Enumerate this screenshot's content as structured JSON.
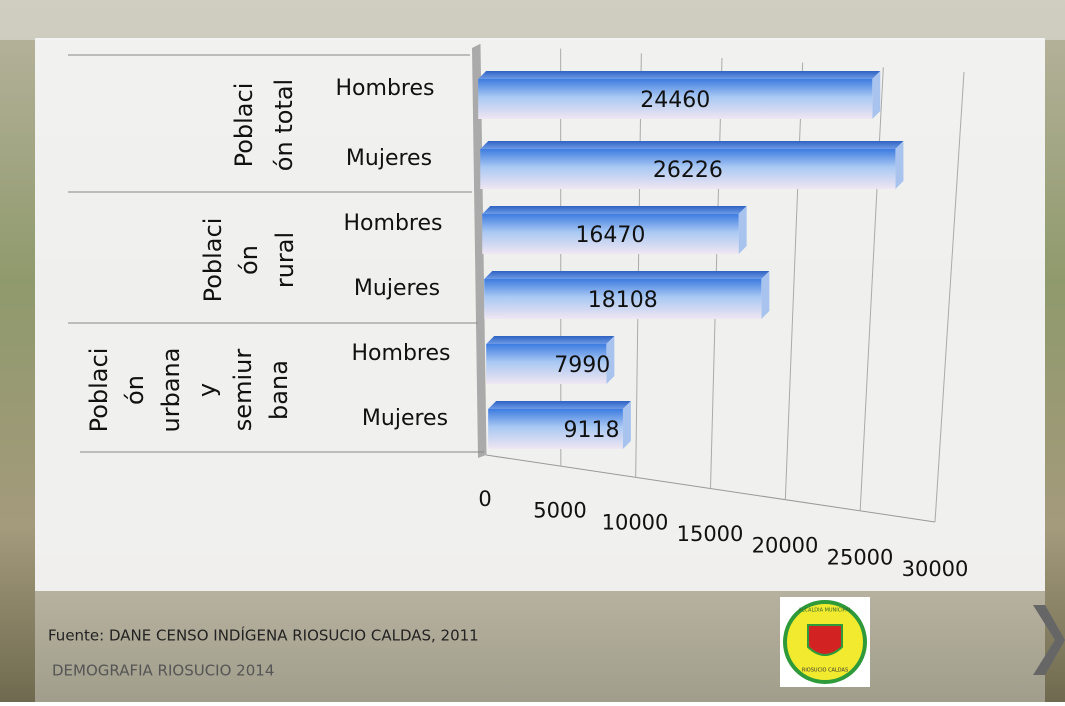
{
  "chart_data": {
    "type": "bar",
    "groups": [
      {
        "lines": [
          "Poblaci",
          "ón total"
        ]
      },
      {
        "lines": [
          "Poblaci",
          "ón",
          "rural"
        ]
      },
      {
        "lines": [
          "Poblaci",
          "ón",
          "urbana",
          "y",
          "semiur",
          "bana"
        ]
      }
    ],
    "categories": [
      "Hombres",
      "Mujeres",
      "Hombres",
      "Mujeres",
      "Hombres",
      "Mujeres"
    ],
    "values": [
      24460,
      26226,
      16470,
      18108,
      7990,
      9118
    ],
    "color": "#5b8fe0",
    "xlim": [
      0,
      30000
    ],
    "xticks": [
      0,
      5000,
      10000,
      15000,
      20000,
      25000,
      30000
    ],
    "grid": true
  },
  "footer": {
    "source": "Fuente: DANE CENSO INDÍGENA RIOSUCIO CALDAS, 2011",
    "subtitle": "DEMOGRAFIA  RIOSUCIO 2014"
  },
  "logo": {
    "top": "ALCALDIA MUNICIPAL",
    "bottom": "RIOSUCIO CALDAS"
  }
}
